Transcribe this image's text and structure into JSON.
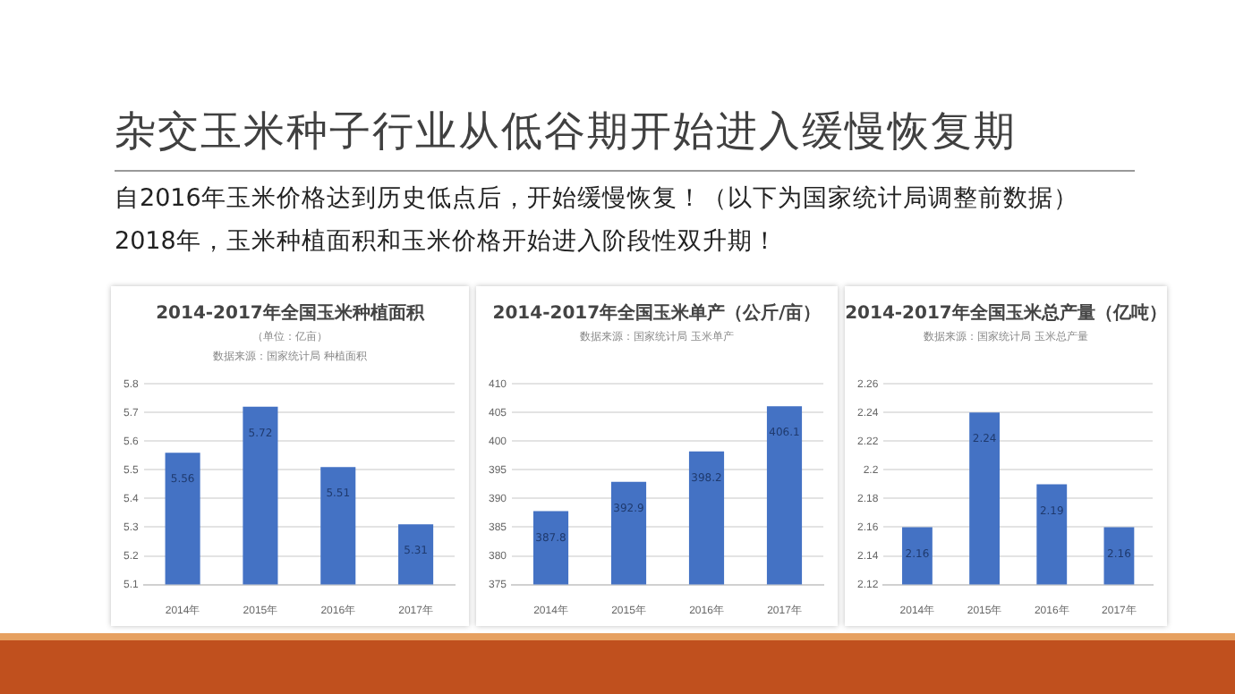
{
  "chart_data": [
    {
      "type": "other",
      "title": "杂交玉米种子行业从低谷期开始进入缓慢恢复期",
      "annotations": [
        "自2016年玉米价格达到历史低点后，开始缓慢恢复！（以下为国家统计局调整前数据）",
        "2018年，玉米种植面积和玉米价格开始进入阶段性双升期！"
      ]
    },
    {
      "type": "bar",
      "title": "2014-2017年全国玉米种植面积",
      "subtitle": "（单位：亿亩）",
      "annotations": [
        "数据来源：国家统计局 种植面积"
      ],
      "categories": [
        "2014年",
        "2015年",
        "2016年",
        "2017年"
      ],
      "values": [
        5.56,
        5.72,
        5.51,
        5.31
      ],
      "color": "#4472c4",
      "ylim": [
        5.1,
        5.8
      ],
      "yticks": [
        5.1,
        5.2,
        5.3,
        5.4,
        5.5,
        5.6,
        5.7,
        5.8
      ],
      "grid": "y",
      "data_labels": true
    },
    {
      "type": "bar",
      "title": "2014-2017年全国玉米单产（公斤/亩）",
      "annotations": [
        "数据来源：国家统计局 玉米单产"
      ],
      "categories": [
        "2014年",
        "2015年",
        "2016年",
        "2017年"
      ],
      "values": [
        387.8,
        392.9,
        398.2,
        406.1
      ],
      "color": "#4472c4",
      "ylim": [
        375,
        410
      ],
      "yticks": [
        375,
        380,
        385,
        390,
        395,
        400,
        405,
        410
      ],
      "grid": "y",
      "data_labels": true
    },
    {
      "type": "bar",
      "title": "2014-2017年全国玉米总产量（亿吨）",
      "annotations": [
        "数据来源：国家统计局 玉米总产量"
      ],
      "categories": [
        "2014年",
        "2015年",
        "2016年",
        "2017年"
      ],
      "values": [
        2.16,
        2.24,
        2.19,
        2.16
      ],
      "color": "#4472c4",
      "ylim": [
        2.12,
        2.26
      ],
      "yticks": [
        2.12,
        2.14,
        2.16,
        2.18,
        2.2,
        2.22,
        2.24,
        2.26
      ],
      "grid": "y",
      "data_labels": true
    }
  ]
}
